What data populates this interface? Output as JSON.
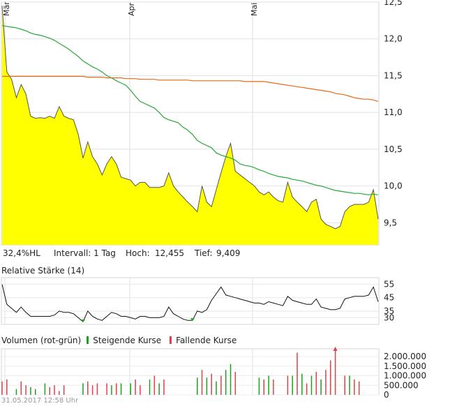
{
  "chart_data": [
    {
      "type": "area",
      "x_tick_labels": [
        "Mär",
        "Apr",
        "Mai"
      ],
      "y_ticks": [
        "12,5",
        "12,0",
        "11,5",
        "11,0",
        "10,5",
        "10,0",
        "9,5"
      ],
      "ylim": [
        9.2,
        12.5
      ],
      "grid": true,
      "series": [
        {
          "values": [
            12.45,
            11.55,
            11.45,
            11.2,
            11.38,
            11.25,
            10.95,
            10.92,
            10.93,
            10.92,
            10.95,
            10.92,
            11.08,
            10.95,
            10.92,
            10.9,
            10.7,
            10.38,
            10.6,
            10.4,
            10.3,
            10.15,
            10.3,
            10.4,
            10.3,
            10.12,
            10.1,
            10.08,
            10.0,
            10.05,
            10.05,
            9.98,
            9.98,
            9.98,
            10.0,
            10.18,
            10.0,
            9.92,
            9.85,
            9.78,
            9.72,
            9.65,
            10.0,
            9.78,
            9.72,
            9.95,
            10.18,
            10.4,
            10.58,
            10.2,
            10.15,
            10.1,
            10.05,
            10.0,
            9.92,
            9.88,
            9.92,
            9.85,
            9.8,
            9.78,
            10.05,
            9.85,
            9.78,
            9.72,
            9.65,
            9.78,
            9.82,
            9.55,
            9.48,
            9.45,
            9.42,
            9.45,
            9.65,
            9.72,
            9.75,
            9.75,
            9.75,
            9.78,
            9.95,
            9.55
          ],
          "color": "#ffff00"
        },
        {
          "values": [
            12.18,
            12.17,
            12.16,
            12.15,
            12.13,
            12.11,
            12.08,
            12.06,
            12.05,
            12.03,
            12.01,
            11.98,
            11.94,
            11.9,
            11.86,
            11.81,
            11.76,
            11.7,
            11.66,
            11.62,
            11.59,
            11.55,
            11.5,
            11.47,
            11.43,
            11.4,
            11.37,
            11.3,
            11.22,
            11.15,
            11.12,
            11.09,
            11.06,
            11.0,
            10.93,
            10.9,
            10.88,
            10.86,
            10.8,
            10.76,
            10.7,
            10.62,
            10.58,
            10.55,
            10.52,
            10.45,
            10.42,
            10.4,
            10.38,
            10.35,
            10.3,
            10.28,
            10.27,
            10.25,
            10.22,
            10.2,
            10.17,
            10.15,
            10.13,
            10.12,
            10.11,
            10.09,
            10.08,
            10.07,
            10.05,
            10.03,
            10.01,
            10.0,
            9.98,
            9.96,
            9.94,
            9.93,
            9.92,
            9.91,
            9.9,
            9.9,
            9.89,
            9.88,
            9.89,
            9.88
          ],
          "color": "#27a836"
        },
        {
          "values": [
            11.49,
            11.49,
            11.49,
            11.49,
            11.49,
            11.49,
            11.49,
            11.49,
            11.49,
            11.49,
            11.49,
            11.49,
            11.49,
            11.49,
            11.49,
            11.49,
            11.49,
            11.49,
            11.48,
            11.48,
            11.48,
            11.48,
            11.47,
            11.47,
            11.47,
            11.47,
            11.46,
            11.46,
            11.46,
            11.45,
            11.45,
            11.45,
            11.45,
            11.44,
            11.44,
            11.44,
            11.44,
            11.44,
            11.44,
            11.44,
            11.43,
            11.43,
            11.43,
            11.43,
            11.43,
            11.43,
            11.43,
            11.43,
            11.43,
            11.43,
            11.43,
            11.42,
            11.42,
            11.42,
            11.42,
            11.42,
            11.41,
            11.4,
            11.39,
            11.38,
            11.37,
            11.36,
            11.35,
            11.34,
            11.33,
            11.32,
            11.31,
            11.3,
            11.29,
            11.28,
            11.26,
            11.25,
            11.24,
            11.22,
            11.2,
            11.19,
            11.18,
            11.18,
            11.17,
            11.15
          ],
          "color": "#e46a18"
        }
      ]
    },
    {
      "type": "line",
      "title": "Relative Stärke (14)",
      "y_ticks": [
        "55",
        "45",
        "35",
        "30"
      ],
      "ylim": [
        25,
        60
      ],
      "series": [
        {
          "values": [
            55,
            40,
            37,
            34,
            38,
            34,
            31,
            31,
            31,
            31,
            31,
            32,
            35,
            34,
            34,
            33,
            30,
            27,
            35,
            31,
            29,
            28,
            31,
            34,
            33,
            31,
            31,
            30,
            29,
            31,
            31,
            30,
            30,
            30,
            31,
            38,
            33,
            31,
            29,
            28,
            28,
            35,
            34,
            36,
            43,
            48,
            53,
            47,
            46,
            45,
            44,
            43,
            42,
            41,
            41,
            40,
            42,
            41,
            40,
            39,
            46,
            43,
            42,
            41,
            40,
            40,
            44,
            38,
            37,
            36,
            36,
            37,
            44,
            45,
            46,
            46,
            46,
            47,
            53,
            42
          ],
          "color": "#000000"
        }
      ]
    },
    {
      "type": "bar",
      "title": "Volumen (rot-grün)",
      "legend": [
        "Steigende Kurse",
        "Fallende Kurse"
      ],
      "y_ticks": [
        "2.000.000",
        "1.500.000",
        "1.000.000",
        "500.000",
        "0"
      ],
      "ylim": [
        0,
        2400000
      ],
      "series": [
        {
          "values": [
            700000,
            800000,
            0,
            300000,
            700000,
            500000,
            400000,
            300000,
            0,
            600000,
            400000,
            500000,
            200000,
            500000,
            0,
            0,
            0,
            600000,
            700000,
            500000,
            600000,
            0,
            600000,
            500000,
            600000,
            600000,
            0,
            600000,
            800000,
            500000,
            0,
            800000,
            1000000,
            600000,
            800000,
            0,
            0,
            0,
            0,
            0,
            0,
            900000,
            1300000,
            900000,
            1100000,
            700000,
            1000000,
            1300000,
            1600000,
            1200000,
            0,
            0,
            0,
            0,
            900000,
            800000,
            1000000,
            800000,
            0,
            0,
            1000000,
            1000000,
            2200000,
            1100000,
            600000,
            1000000,
            1200000,
            800000,
            1300000,
            1800000,
            2300000,
            0,
            1000000,
            1000000,
            800000,
            700000,
            0,
            0,
            0,
            0
          ],
          "color": "#e0404a"
        },
        {
          "values": [
            0,
            0,
            0,
            0,
            0,
            0,
            0,
            0,
            0,
            0,
            0,
            0,
            0,
            0,
            0,
            0,
            0,
            0,
            0,
            0,
            0,
            0,
            0,
            0,
            0,
            0,
            0,
            0,
            0,
            0,
            0,
            0,
            0,
            0,
            0,
            0,
            0,
            0,
            0,
            0,
            0,
            0,
            0,
            0,
            0,
            0,
            0,
            0,
            0,
            0,
            0,
            0,
            0,
            0,
            0,
            0,
            0,
            0,
            0,
            0,
            0,
            0,
            0,
            0,
            0,
            0,
            0,
            0,
            0,
            0,
            0,
            0,
            0,
            0,
            0,
            0,
            0,
            0,
            0,
            0
          ],
          "color": "#1aa31a"
        }
      ],
      "volume_colored": {
        "up_idx": [
          3,
          6,
          7,
          9,
          14,
          17,
          21,
          23,
          25,
          27,
          31,
          33,
          35,
          41,
          43,
          45,
          47,
          48,
          50,
          52,
          54,
          56,
          61,
          63,
          65,
          67,
          71,
          73,
          77,
          79
        ],
        "down_idx": [
          0,
          1,
          4,
          5,
          8,
          10,
          11,
          12,
          13,
          18,
          19,
          20,
          22,
          24,
          26,
          28,
          30,
          32,
          34,
          42,
          44,
          46,
          49,
          51,
          55,
          57,
          60,
          62,
          64,
          66,
          68,
          69,
          70,
          72,
          74,
          75
        ]
      }
    }
  ],
  "info": {
    "pct": "32,4%HL",
    "interval": "Intervall: 1 Tag",
    "high_label": "Hoch:",
    "high": "12,455",
    "low_label": "Tief:",
    "low": "9,409"
  },
  "rsi_title": "Relative Stärke (14)",
  "volume_title": "Volumen (rot-grün)",
  "legend_up": "Steigende Kurse",
  "legend_down": "Fallende Kurse",
  "timestamp": "31.05.2017 12:58 Uhr"
}
